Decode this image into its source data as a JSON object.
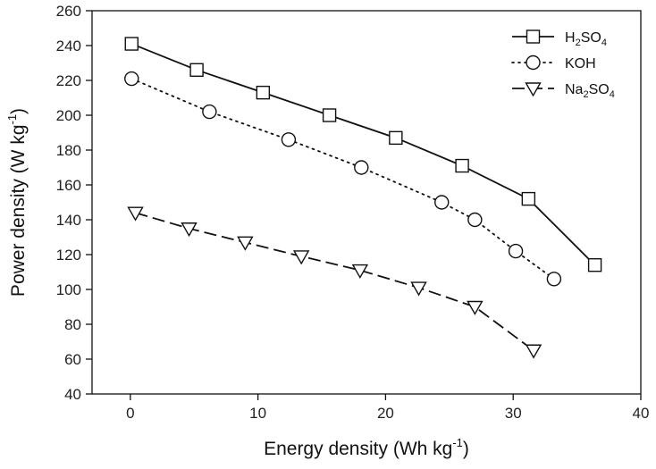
{
  "chart_data": {
    "type": "line",
    "xlabel": "Energy density (Wh kg",
    "xlabel_sup": "-1",
    "xlabel_end": ")",
    "ylabel": "Power density (W kg",
    "ylabel_sup": "-1",
    "ylabel_end": ")",
    "xlim": [
      -3,
      40
    ],
    "ylim": [
      40,
      260
    ],
    "xticks": [
      0,
      10,
      20,
      30,
      40
    ],
    "yticks": [
      40,
      60,
      80,
      100,
      120,
      140,
      160,
      180,
      200,
      220,
      240,
      260
    ],
    "grid": false,
    "legend_position": "top-right",
    "series": [
      {
        "name": "H2SO4",
        "label_parts": [
          [
            "H",
            ""
          ],
          [
            "2",
            "sub"
          ],
          [
            "SO",
            ""
          ],
          [
            "4",
            "sub"
          ]
        ],
        "marker": "square",
        "dash": "",
        "color": "#111111",
        "x": [
          0.1,
          5.2,
          10.4,
          15.6,
          20.8,
          26.0,
          31.2,
          36.4
        ],
        "y": [
          241,
          226,
          213,
          200,
          187,
          171,
          152,
          114
        ]
      },
      {
        "name": "KOH",
        "label_parts": [
          [
            "KOH",
            ""
          ]
        ],
        "marker": "circle",
        "dash": "2,5",
        "color": "#111111",
        "x": [
          0.1,
          6.2,
          12.4,
          18.1,
          24.4,
          27.0,
          30.2,
          33.2
        ],
        "y": [
          221,
          202,
          186,
          170,
          150,
          140,
          122,
          106
        ]
      },
      {
        "name": "Na2SO4",
        "label_parts": [
          [
            "Na",
            ""
          ],
          [
            "2",
            "sub"
          ],
          [
            "SO",
            ""
          ],
          [
            "4",
            "sub"
          ]
        ],
        "marker": "triangle-down",
        "dash": "14,6",
        "color": "#111111",
        "x": [
          0.4,
          4.6,
          9.0,
          13.4,
          18.0,
          22.6,
          27.0,
          31.6
        ],
        "y": [
          144,
          135,
          127,
          119,
          111,
          101,
          90,
          65
        ]
      }
    ]
  }
}
